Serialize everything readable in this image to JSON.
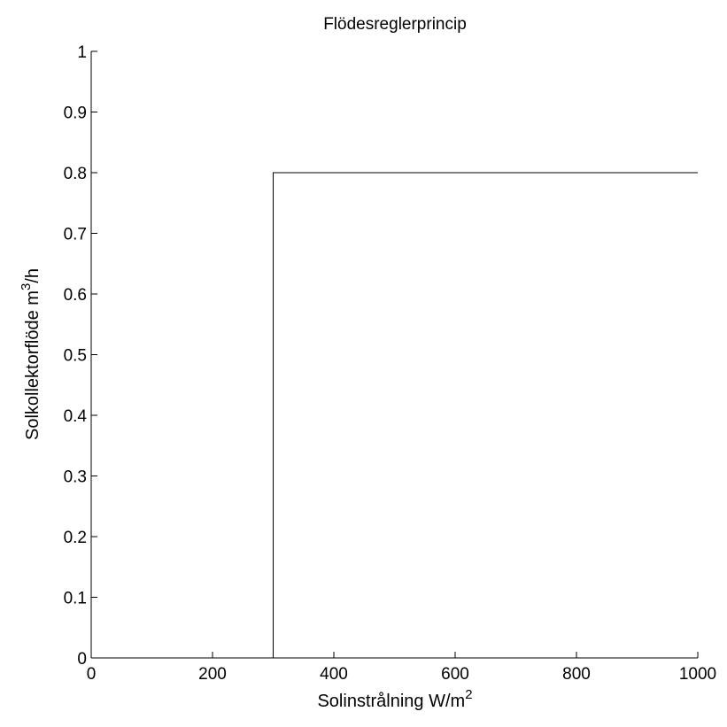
{
  "chart_data": {
    "type": "line",
    "title": "Flödesreglerprincip",
    "xlabel": {
      "base": "Solinstrålning W/m",
      "sup": "2"
    },
    "ylabel": {
      "pre": "Solkollektorflöde  m",
      "sup": "3",
      "post": "/h"
    },
    "xlim": [
      0,
      1000
    ],
    "ylim": [
      0,
      1
    ],
    "xticks": [
      0,
      200,
      400,
      600,
      800,
      1000
    ],
    "xtick_labels": [
      "0",
      "200",
      "400",
      "600",
      "800",
      "1000"
    ],
    "yticks": [
      0,
      0.1,
      0.2,
      0.3,
      0.4,
      0.5,
      0.6,
      0.7,
      0.8,
      0.9,
      1
    ],
    "ytick_labels": [
      "0",
      "0.1",
      "0.2",
      "0.3",
      "0.4",
      "0.5",
      "0.6",
      "0.7",
      "0.8",
      "0.9",
      "1"
    ],
    "grid": false,
    "series": [
      {
        "x": [
          0,
          300,
          300,
          1000
        ],
        "y": [
          0,
          0,
          0.8,
          0.8
        ]
      }
    ]
  }
}
